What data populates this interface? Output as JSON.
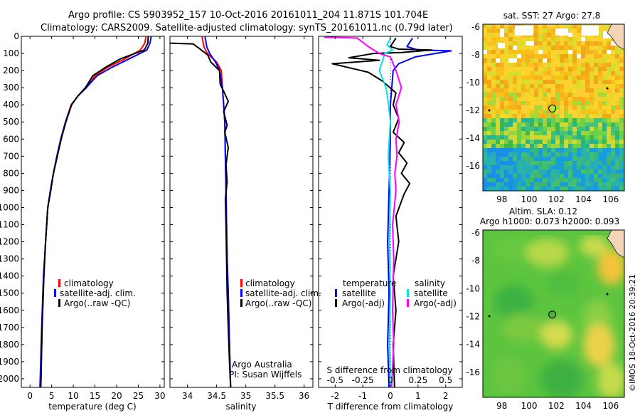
{
  "header": {
    "line1": "Argo profile: CS 5903952_157 10-Oct-2016 20161011_204 11.871S 101.704E",
    "line2": "Climatology: CARS2009. Satellite-adjusted climatology: synTS_20161011.nc (0.79d later)"
  },
  "footer": {
    "credit_line1": "Argo Australia",
    "credit_line2": "PI: Susan Wijffels",
    "stamp": "©IMOS 18-Oct-2016 20:39:21"
  },
  "colors": {
    "climatology": "#ff0000",
    "satellite_adj": "#0000ff",
    "argo": "#000000",
    "t_satellite": "#0000ff",
    "s_satellite": "#00e5e5",
    "s_argo": "#ff00ff"
  },
  "chart_data": [
    {
      "id": "temperature",
      "type": "line",
      "xlabel": "temperature (deg C)",
      "ylabel": "",
      "xlim": [
        -2,
        31
      ],
      "ylim": [
        2050,
        0
      ],
      "xticks": [
        0,
        5,
        10,
        15,
        20,
        25,
        30
      ],
      "yticks": [
        0,
        100,
        200,
        300,
        400,
        500,
        600,
        700,
        800,
        900,
        1000,
        1100,
        1200,
        1300,
        1400,
        1500,
        1600,
        1700,
        1800,
        1900,
        2000
      ],
      "legend": [
        "climatology",
        "satellite-adj. clim.",
        "Argo(..raw -QC)"
      ],
      "legend_position": "bottom-right",
      "series": [
        {
          "name": "climatology",
          "color": "#ff0000",
          "x": [
            26.8,
            26.5,
            25.5,
            22,
            18,
            15,
            13,
            11,
            9.5,
            8.2,
            7.2,
            6.3,
            5.4,
            4.8,
            4.1,
            3.6,
            3.2,
            2.8,
            2.5
          ],
          "y": [
            0,
            40,
            80,
            130,
            180,
            230,
            300,
            350,
            400,
            500,
            600,
            700,
            800,
            900,
            1000,
            1200,
            1400,
            1700,
            2050
          ]
        },
        {
          "name": "satellite-adj. clim.",
          "color": "#0000ff",
          "x": [
            28,
            27.7,
            27,
            23,
            19,
            15.5,
            13,
            11,
            9.6,
            8.2,
            7.1,
            6.2,
            5.4,
            4.7,
            4.1,
            3.6,
            3.1,
            2.7,
            2.3
          ],
          "y": [
            0,
            40,
            80,
            130,
            180,
            230,
            300,
            350,
            400,
            500,
            600,
            700,
            800,
            900,
            1000,
            1200,
            1400,
            1700,
            2050
          ]
        },
        {
          "name": "Argo(..raw -QC)",
          "color": "#000000",
          "x": [
            27.3,
            27.2,
            26.4,
            21,
            17.5,
            14.5,
            12.8,
            11,
            9.6,
            8.3,
            7.2,
            6.3,
            5.4,
            4.8,
            4.1,
            3.6,
            3.2,
            2.8,
            2.5
          ],
          "y": [
            0,
            40,
            80,
            130,
            180,
            230,
            300,
            350,
            400,
            500,
            600,
            700,
            800,
            900,
            1000,
            1200,
            1400,
            1700,
            2050
          ]
        }
      ]
    },
    {
      "id": "salinity",
      "type": "line",
      "xlabel": "salinity",
      "xlim": [
        33.7,
        36.15
      ],
      "ylim": [
        2050,
        0
      ],
      "xticks": [
        34,
        34.5,
        35,
        35.5,
        36
      ],
      "legend": [
        "climatology",
        "satellite-adj. clim.",
        "Argo(..raw -QC)"
      ],
      "legend_position": "bottom-right",
      "series": [
        {
          "name": "climatology",
          "color": "#ff0000",
          "x": [
            34.25,
            34.28,
            34.34,
            34.5,
            34.58,
            34.6,
            34.62,
            34.64,
            34.65,
            34.66,
            34.67,
            34.68,
            34.7,
            34.72,
            34.74
          ],
          "y": [
            0,
            60,
            100,
            150,
            200,
            300,
            400,
            500,
            700,
            900,
            1100,
            1300,
            1500,
            1800,
            2050
          ]
        },
        {
          "name": "satellite-adj. clim.",
          "color": "#0000ff",
          "x": [
            34.3,
            34.33,
            34.38,
            34.48,
            34.55,
            34.6,
            34.62,
            34.64,
            34.65,
            34.66,
            34.67,
            34.68,
            34.7,
            34.72,
            34.74
          ],
          "y": [
            0,
            60,
            100,
            150,
            200,
            300,
            400,
            500,
            700,
            900,
            1100,
            1300,
            1500,
            1800,
            2050
          ]
        },
        {
          "name": "Argo(..raw -QC)",
          "color": "#000000",
          "x": [
            33.7,
            34.1,
            34.2,
            34.35,
            34.4,
            34.55,
            34.56,
            34.62,
            34.7,
            34.62,
            34.68,
            34.64,
            34.7,
            34.66,
            34.68,
            34.65,
            34.66,
            34.67,
            34.68,
            34.7,
            34.72,
            34.74
          ],
          "y": [
            40,
            45,
            70,
            110,
            150,
            200,
            280,
            320,
            380,
            440,
            520,
            560,
            650,
            750,
            850,
            950,
            1100,
            1300,
            1500,
            1700,
            1900,
            2050
          ]
        }
      ]
    },
    {
      "id": "difference",
      "type": "line",
      "xlabel": "T difference from climatology",
      "xlabel_top": "S difference from climatology",
      "xlim": [
        -2.6,
        2.6
      ],
      "ylim": [
        2050,
        0
      ],
      "xticks": [
        -2,
        -1,
        0,
        1,
        2
      ],
      "sticks": [
        -0.5,
        -0.25,
        0,
        0.25,
        0.5
      ],
      "stick_labels": [
        "-0.5",
        "-0.25",
        "0",
        "0.25",
        "0.5"
      ],
      "slim": [
        -0.65,
        0.65
      ],
      "legend_t": {
        "title": "temperature",
        "items": [
          "satellite",
          "Argo(-adj)"
        ]
      },
      "legend_s": {
        "title": "salinity",
        "items": [
          "satellite",
          "Argo(-adj)"
        ]
      },
      "series": [
        {
          "name": "T satellite",
          "color": "#0000ff",
          "x": [
            0.8,
            0.6,
            1.0,
            2.2,
            0.9,
            0.3,
            0.1,
            0.05,
            0,
            0,
            -0.05,
            -0.1,
            -0.05,
            -0.1,
            -0.05
          ],
          "y": [
            10,
            60,
            80,
            85,
            120,
            160,
            200,
            300,
            400,
            600,
            900,
            1200,
            1500,
            1800,
            2050
          ]
        },
        {
          "name": "T Argo(-adj)",
          "color": "#000000",
          "x": [
            0.2,
            0.0,
            0.3,
            1.5,
            0.4,
            -0.6,
            -1.5,
            -0.4,
            -2.1,
            -0.8,
            -0.3,
            0.2,
            0.1,
            0.3,
            0.1,
            0.5,
            0.3,
            0.6,
            0.4,
            0.7,
            0.5,
            0.2,
            0.3,
            0.1,
            0.2,
            0.1,
            0.15
          ],
          "y": [
            10,
            60,
            75,
            80,
            95,
            100,
            125,
            140,
            160,
            210,
            260,
            330,
            400,
            480,
            560,
            620,
            680,
            740,
            800,
            860,
            920,
            1050,
            1200,
            1400,
            1600,
            1800,
            2050
          ]
        },
        {
          "name": "S satellite",
          "color": "#00e5e5",
          "axis": "s",
          "x": [
            0.0,
            -0.03,
            0.02,
            -0.05,
            -0.1,
            -0.04,
            -0.02,
            0.0,
            -0.02,
            0.0,
            -0.01,
            0.0,
            -0.01,
            0.0
          ],
          "y": [
            10,
            50,
            80,
            100,
            200,
            300,
            380,
            500,
            700,
            900,
            1200,
            1500,
            1800,
            2050
          ]
        },
        {
          "name": "S Argo(-adj)",
          "color": "#ff00ff",
          "axis": "s",
          "x": [
            -0.6,
            -0.3,
            -0.2,
            -0.1,
            0.0,
            0.05,
            0.1,
            0.05,
            0.08,
            0.05,
            0.06,
            0.04,
            0.05,
            0.02,
            0.03,
            0.02,
            0.03,
            0.01
          ],
          "y": [
            5,
            10,
            60,
            100,
            120,
            200,
            300,
            400,
            500,
            600,
            700,
            800,
            900,
            1100,
            1300,
            1600,
            1800,
            2050
          ]
        }
      ]
    },
    {
      "id": "sst-map",
      "type": "heatmap",
      "title": "sat. SST: 27 Argo: 27.8",
      "xlim": [
        96.6,
        107
      ],
      "ylim": [
        -17.8,
        -5.8
      ],
      "xticks": [
        98,
        100,
        102,
        104,
        106
      ],
      "yticks": [
        -6,
        -8,
        -10,
        -12,
        -14,
        -16
      ],
      "profile_location": {
        "lon": 101.704,
        "lat": -11.871
      }
    },
    {
      "id": "sla-map",
      "type": "heatmap",
      "title_line1": "Altim. SLA: 0.12",
      "title_line2": "Argo h1000: 0.073 h2000: 0.093",
      "xlim": [
        96.6,
        107
      ],
      "ylim": [
        -17.8,
        -5.8
      ],
      "xticks": [
        98,
        100,
        102,
        104,
        106
      ],
      "yticks": [
        -6,
        -8,
        -10,
        -12,
        -14,
        -16
      ],
      "profile_location": {
        "lon": 101.704,
        "lat": -11.871
      }
    }
  ]
}
